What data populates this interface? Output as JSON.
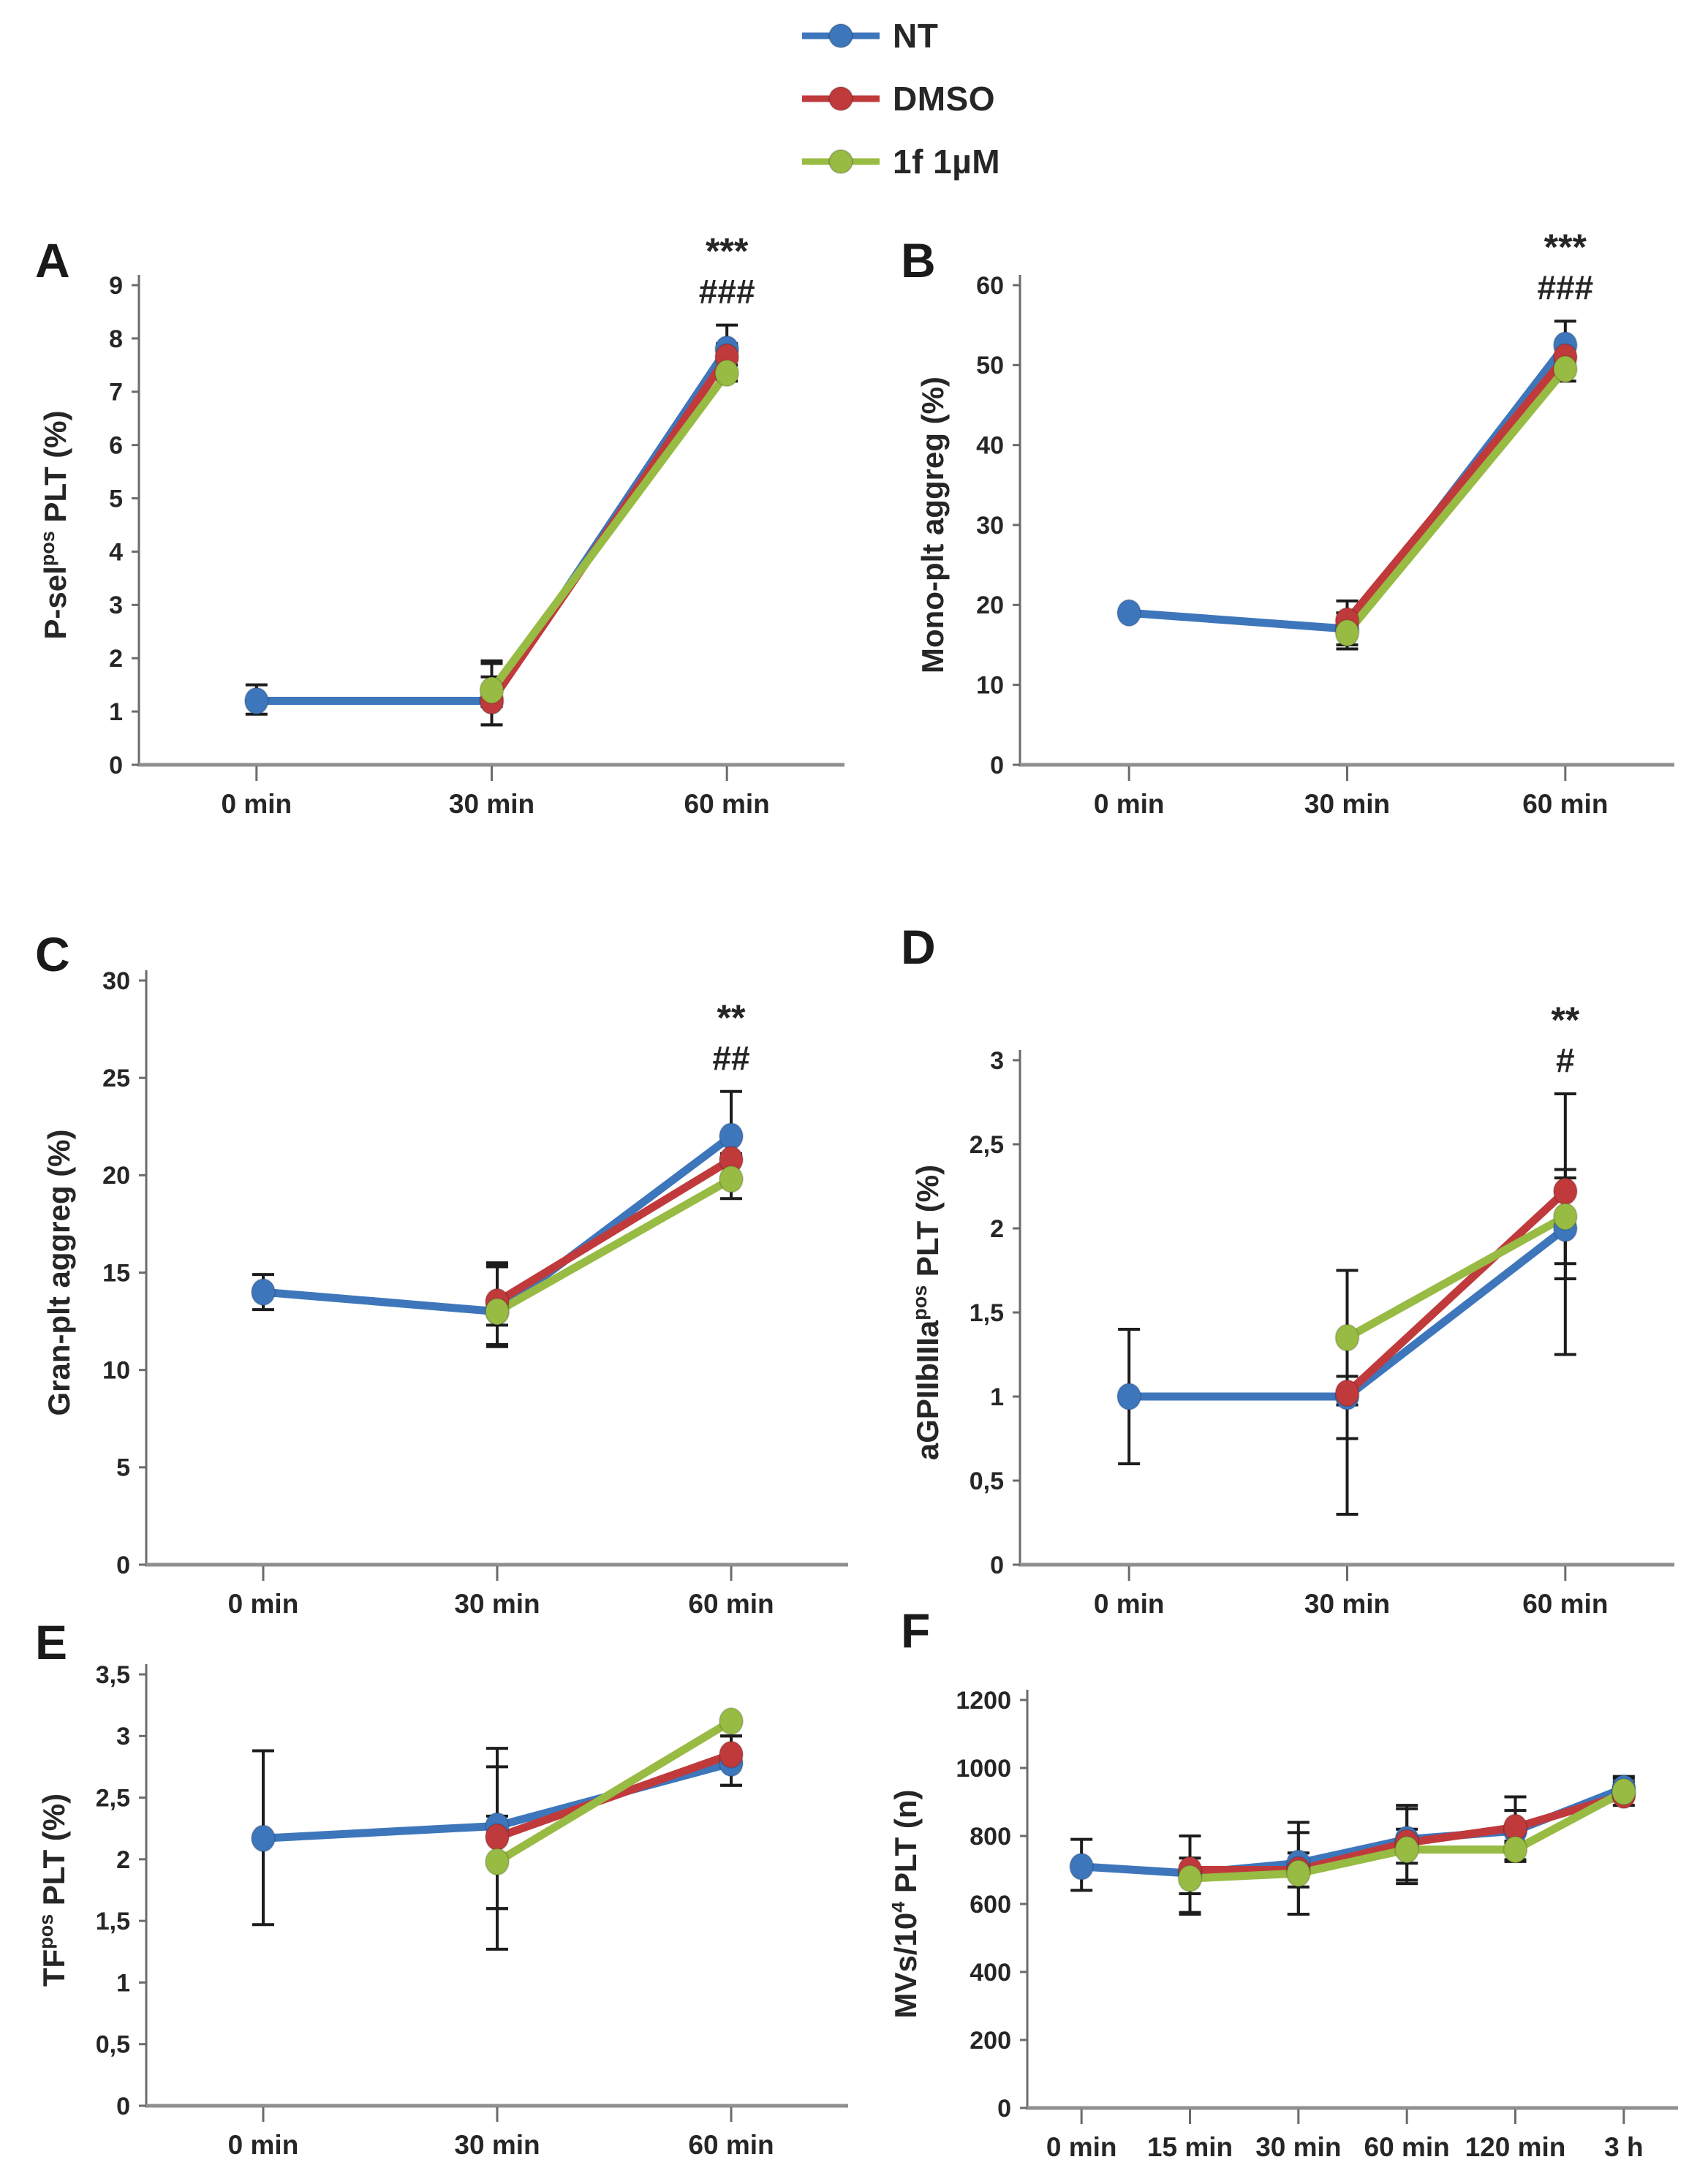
{
  "figure": {
    "background": "#ffffff",
    "text_color": "#262626",
    "error_bar_color": "#1c1c1c",
    "axis_color_y": "#6b6b6b",
    "axis_color_x": "#8f8f8f"
  },
  "legend": {
    "items": [
      {
        "label": "NT",
        "color": "#3E76BC"
      },
      {
        "label": "DMSO",
        "color": "#C03A3C"
      },
      {
        "label": "1f 1µM",
        "color": "#98BB43"
      }
    ]
  },
  "chart_data": [
    {
      "panel": "A",
      "type": "line",
      "ylabel_parts": [
        {
          "t": "P-sel"
        },
        {
          "t": "pos",
          "sup": true
        },
        {
          "t": " PLT (%)"
        }
      ],
      "ylim": [
        0,
        9
      ],
      "ytick_values": [
        0,
        1,
        2,
        3,
        4,
        5,
        6,
        7,
        8,
        9
      ],
      "ytick_labels": [
        "0",
        "1",
        "2",
        "3",
        "4",
        "5",
        "6",
        "7",
        "8",
        "9"
      ],
      "categories": [
        "0 min",
        "30 min",
        "60 min"
      ],
      "annotation": {
        "symbols": [
          "***",
          "###"
        ],
        "at_category_index": 2
      },
      "series": [
        {
          "name": "NT",
          "color": "#3E76BC",
          "values": [
            1.2,
            1.2,
            7.8
          ],
          "err_up": [
            0.3,
            0.45,
            0.45
          ],
          "err_dn": [
            0.25,
            0.45,
            0.2
          ]
        },
        {
          "name": "DMSO",
          "color": "#C03A3C",
          "values": [
            null,
            1.2,
            7.65
          ],
          "err_up": [
            null,
            0.75,
            0.25
          ],
          "err_dn": [
            null,
            0.45,
            0.25
          ]
        },
        {
          "name": "1f 1µM",
          "color": "#98BB43",
          "values": [
            null,
            1.4,
            7.35
          ],
          "err_up": [
            null,
            0.5,
            0.15
          ],
          "err_dn": [
            null,
            0.3,
            0.15
          ]
        }
      ]
    },
    {
      "panel": "B",
      "type": "line",
      "ylabel_parts": [
        {
          "t": "Mono-plt aggreg (%)"
        }
      ],
      "ylim": [
        0,
        60
      ],
      "ytick_values": [
        0,
        10,
        20,
        30,
        40,
        50,
        60
      ],
      "ytick_labels": [
        "0",
        "10",
        "20",
        "30",
        "40",
        "50",
        "60"
      ],
      "categories": [
        "0 min",
        "30 min",
        "60 min"
      ],
      "annotation": {
        "symbols": [
          "***",
          "###"
        ],
        "at_category_index": 2
      },
      "series": [
        {
          "name": "NT",
          "color": "#3E76BC",
          "values": [
            19,
            17,
            52.5
          ],
          "err_up": [
            null,
            2,
            3
          ],
          "err_dn": [
            null,
            2,
            1.5
          ]
        },
        {
          "name": "DMSO",
          "color": "#C03A3C",
          "values": [
            null,
            18,
            51
          ],
          "err_up": [
            null,
            2.5,
            1.5
          ],
          "err_dn": [
            null,
            1.5,
            1
          ]
        },
        {
          "name": "1f 1µM",
          "color": "#98BB43",
          "values": [
            null,
            16.5,
            49.5
          ],
          "err_up": [
            null,
            1.5,
            1
          ],
          "err_dn": [
            null,
            2,
            1.5
          ]
        }
      ]
    },
    {
      "panel": "C",
      "type": "line",
      "ylabel_parts": [
        {
          "t": "Gran-plt aggreg (%)"
        }
      ],
      "ylim": [
        0,
        30
      ],
      "ytick_values": [
        0,
        5,
        10,
        15,
        20,
        25,
        30
      ],
      "ytick_labels": [
        "0",
        "5",
        "10",
        "15",
        "20",
        "25",
        "30"
      ],
      "categories": [
        "0 min",
        "30 min",
        "60 min"
      ],
      "annotation": {
        "symbols": [
          "**",
          "##"
        ],
        "at_category_index": 2
      },
      "series": [
        {
          "name": "NT",
          "color": "#3E76BC",
          "values": [
            14,
            13,
            22
          ],
          "err_up": [
            0.9,
            2.5,
            2.3
          ],
          "err_dn": [
            0.9,
            1.7,
            0.9
          ]
        },
        {
          "name": "DMSO",
          "color": "#C03A3C",
          "values": [
            null,
            13.5,
            20.8
          ],
          "err_up": [
            null,
            1.8,
            1.2
          ],
          "err_dn": [
            null,
            1.2,
            0.9
          ]
        },
        {
          "name": "1f 1µM",
          "color": "#98BB43",
          "values": [
            null,
            13,
            19.8
          ],
          "err_up": [
            null,
            2.4,
            1
          ],
          "err_dn": [
            null,
            1.8,
            1
          ]
        }
      ]
    },
    {
      "panel": "D",
      "type": "line",
      "ylabel_parts": [
        {
          "t": "aGPIIbIIIa"
        },
        {
          "t": "pos",
          "sup": true
        },
        {
          "t": " PLT (%)"
        }
      ],
      "ylim": [
        0,
        3
      ],
      "ytick_values": [
        0,
        0.5,
        1,
        1.5,
        2,
        2.5,
        3
      ],
      "ytick_labels": [
        "0",
        "0,5",
        "1",
        "1,5",
        "2",
        "2,5",
        "3"
      ],
      "categories": [
        "0 min",
        "30 min",
        "60 min"
      ],
      "annotation": {
        "symbols": [
          "**",
          "#"
        ],
        "at_category_index": 2
      },
      "series": [
        {
          "name": "NT",
          "color": "#3E76BC",
          "values": [
            1.0,
            1.0,
            2.0
          ],
          "err_up": [
            0.4,
            0.12,
            0.3
          ],
          "err_dn": [
            0.4,
            0.25,
            0.3
          ]
        },
        {
          "name": "DMSO",
          "color": "#C03A3C",
          "values": [
            null,
            1.02,
            2.22
          ],
          "err_up": [
            null,
            0.73,
            0.58
          ],
          "err_dn": [
            null,
            0.72,
            0.97
          ]
        },
        {
          "name": "1f 1µM",
          "color": "#98BB43",
          "values": [
            null,
            1.35,
            2.07
          ],
          "err_up": [
            null,
            0.4,
            0.28
          ],
          "err_dn": [
            null,
            0.4,
            0.28
          ]
        }
      ]
    },
    {
      "panel": "E",
      "type": "line",
      "ylabel_parts": [
        {
          "t": "TF"
        },
        {
          "t": "pos",
          "sup": true
        },
        {
          "t": " PLT (%)"
        }
      ],
      "ylim": [
        0,
        3.5
      ],
      "ytick_values": [
        0,
        0.5,
        1,
        1.5,
        2,
        2.5,
        3,
        3.5
      ],
      "ytick_labels": [
        "0",
        "0,5",
        "1",
        "1,5",
        "2",
        "2,5",
        "3",
        "3,5"
      ],
      "categories": [
        "0 min",
        "30 min",
        "60 min"
      ],
      "annotation": null,
      "series": [
        {
          "name": "NT",
          "color": "#3E76BC",
          "values": [
            2.17,
            2.27,
            2.78
          ],
          "err_up": [
            0.71,
            0.48,
            0.22
          ],
          "err_dn": [
            0.7,
            0.67,
            0.18
          ]
        },
        {
          "name": "DMSO",
          "color": "#C03A3C",
          "values": [
            null,
            2.18,
            2.85
          ],
          "err_up": [
            null,
            0.72,
            0.15
          ],
          "err_dn": [
            null,
            0.58,
            0.25
          ]
        },
        {
          "name": "1f 1µM",
          "color": "#98BB43",
          "values": [
            null,
            1.98,
            3.12
          ],
          "err_up": [
            null,
            0.37,
            null
          ],
          "err_dn": [
            null,
            0.71,
            null
          ]
        }
      ]
    },
    {
      "panel": "F",
      "type": "line",
      "ylabel_parts": [
        {
          "t": "MVs/10"
        },
        {
          "t": "4",
          "sup": true
        },
        {
          "t": " PLT (n)"
        }
      ],
      "ylim": [
        0,
        1200
      ],
      "ytick_values": [
        0,
        200,
        400,
        600,
        800,
        1000,
        1200
      ],
      "ytick_labels": [
        "0",
        "200",
        "400",
        "600",
        "800",
        "1000",
        "1200"
      ],
      "categories": [
        "0 min",
        "15 min",
        "30 min",
        "60 min",
        "120 min",
        "3 h"
      ],
      "annotation": null,
      "series": [
        {
          "name": "NT",
          "color": "#3E76BC",
          "values": [
            710,
            690,
            720,
            790,
            815,
            940
          ],
          "err_up": [
            80,
            110,
            120,
            90,
            60,
            35
          ],
          "err_dn": [
            70,
            60,
            70,
            70,
            30,
            25
          ]
        },
        {
          "name": "DMSO",
          "color": "#C03A3C",
          "values": [
            null,
            700,
            700,
            780,
            825,
            920
          ],
          "err_up": [
            null,
            100,
            110,
            110,
            90,
            50
          ],
          "err_dn": [
            null,
            130,
            130,
            110,
            95,
            30
          ]
        },
        {
          "name": "1f 1µM",
          "color": "#98BB43",
          "values": [
            null,
            675,
            690,
            760,
            760,
            930
          ],
          "err_up": [
            null,
            60,
            60,
            60,
            20,
            30
          ],
          "err_dn": [
            null,
            100,
            120,
            100,
            35,
            20
          ]
        }
      ]
    }
  ]
}
